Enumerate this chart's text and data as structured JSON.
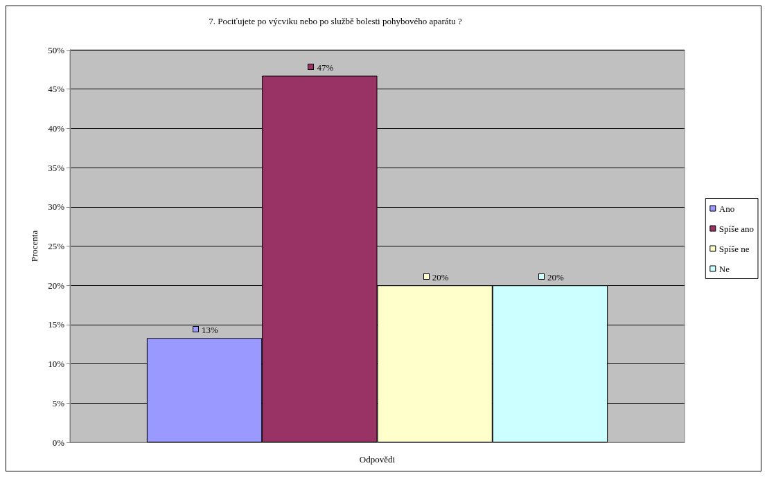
{
  "chart_data": {
    "type": "bar",
    "title": "7. Pociťujete po výcviku nebo po službě bolesti pohybového aparátu ?",
    "xlabel": "Odpovědi",
    "ylabel": "Procenta",
    "categories": [
      null
    ],
    "series": [
      {
        "name": "Ano",
        "color": "#9999ff",
        "values": [
          13.3
        ],
        "value_labels": [
          "13%"
        ]
      },
      {
        "name": "Spíše ano",
        "color": "#993366",
        "values": [
          46.7
        ],
        "value_labels": [
          "47%"
        ]
      },
      {
        "name": "Spíše ne",
        "color": "#ffffcc",
        "values": [
          20
        ],
        "value_labels": [
          "20%"
        ]
      },
      {
        "name": "Ne",
        "color": "#ccffff",
        "values": [
          20
        ],
        "value_labels": [
          "20%"
        ]
      }
    ],
    "ylim": [
      0,
      50
    ],
    "yticks": [
      {
        "value": 0,
        "label": "0%"
      },
      {
        "value": 5,
        "label": "5%"
      },
      {
        "value": 10,
        "label": "10%"
      },
      {
        "value": 15,
        "label": "15%"
      },
      {
        "value": 20,
        "label": "20%"
      },
      {
        "value": 25,
        "label": "25%"
      },
      {
        "value": 30,
        "label": "30%"
      },
      {
        "value": 35,
        "label": "35%"
      },
      {
        "value": 40,
        "label": "40%"
      },
      {
        "value": 45,
        "label": "45%"
      },
      {
        "value": 50,
        "label": "50%"
      }
    ],
    "grid": "y",
    "legend": "right"
  }
}
